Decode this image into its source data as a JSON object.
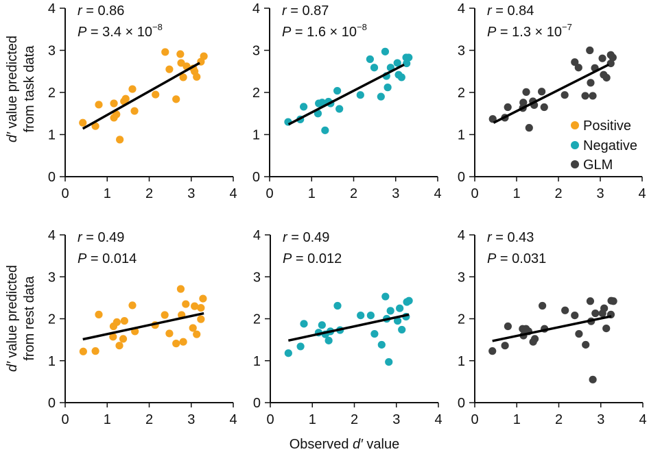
{
  "chart_data": [
    {
      "type": "scatter",
      "row": "task",
      "series_name": "Positive",
      "color": "#F5A31F",
      "stats": {
        "r": "0.86",
        "P_mantissa": "3.4",
        "P_exponent": "−8"
      },
      "xlim": [
        0,
        4
      ],
      "ylim": [
        0,
        4
      ],
      "xticks": [
        "0",
        "1",
        "2",
        "3",
        "4"
      ],
      "yticks": [
        "0",
        "1",
        "2",
        "3",
        "4"
      ],
      "fit_line": {
        "x": [
          0.42,
          3.2
        ],
        "y": [
          1.14,
          2.7
        ]
      },
      "points": [
        [
          0.42,
          1.28
        ],
        [
          0.72,
          1.2
        ],
        [
          0.8,
          1.71
        ],
        [
          1.16,
          1.74
        ],
        [
          1.16,
          1.4
        ],
        [
          1.22,
          1.48
        ],
        [
          1.3,
          0.88
        ],
        [
          1.4,
          1.79
        ],
        [
          1.44,
          1.85
        ],
        [
          1.6,
          2.08
        ],
        [
          1.65,
          1.56
        ],
        [
          2.15,
          1.95
        ],
        [
          2.38,
          2.96
        ],
        [
          2.48,
          2.55
        ],
        [
          2.64,
          1.84
        ],
        [
          2.74,
          2.91
        ],
        [
          2.76,
          2.7
        ],
        [
          2.81,
          2.36
        ],
        [
          2.89,
          2.62
        ],
        [
          3.05,
          2.57
        ],
        [
          3.08,
          2.5
        ],
        [
          3.13,
          2.37
        ],
        [
          3.23,
          2.73
        ],
        [
          3.3,
          2.86
        ]
      ]
    },
    {
      "type": "scatter",
      "row": "task",
      "series_name": "Negative",
      "color": "#1BA9B5",
      "stats": {
        "r": "0.87",
        "P_mantissa": "1.6",
        "P_exponent": "−8"
      },
      "xlim": [
        0,
        4
      ],
      "ylim": [
        0,
        4
      ],
      "xticks": [
        "0",
        "1",
        "2",
        "3",
        "4"
      ],
      "yticks": [
        "0",
        "1",
        "2",
        "3",
        "4"
      ],
      "fit_line": {
        "x": [
          0.45,
          3.2
        ],
        "y": [
          1.24,
          2.66
        ]
      },
      "points": [
        [
          0.44,
          1.3
        ],
        [
          0.73,
          1.36
        ],
        [
          0.81,
          1.66
        ],
        [
          1.15,
          1.5
        ],
        [
          1.17,
          1.74
        ],
        [
          1.25,
          1.76
        ],
        [
          1.32,
          1.1
        ],
        [
          1.4,
          1.78
        ],
        [
          1.45,
          1.74
        ],
        [
          1.61,
          2.04
        ],
        [
          1.66,
          1.61
        ],
        [
          2.16,
          1.94
        ],
        [
          2.39,
          2.79
        ],
        [
          2.49,
          2.59
        ],
        [
          2.65,
          1.9
        ],
        [
          2.75,
          2.97
        ],
        [
          2.78,
          2.39
        ],
        [
          2.81,
          2.12
        ],
        [
          2.88,
          2.59
        ],
        [
          3.04,
          2.7
        ],
        [
          3.07,
          2.42
        ],
        [
          3.14,
          2.36
        ],
        [
          3.25,
          2.83
        ],
        [
          3.31,
          2.83
        ],
        [
          3.26,
          2.69
        ]
      ]
    },
    {
      "type": "scatter",
      "row": "task",
      "series_name": "GLM",
      "color": "#404040",
      "stats": {
        "r": "0.84",
        "P_mantissa": "1.3",
        "P_exponent": "−7"
      },
      "xlim": [
        0,
        4
      ],
      "ylim": [
        0,
        4
      ],
      "xticks": [
        "0",
        "1",
        "2",
        "3",
        "4"
      ],
      "yticks": [
        "0",
        "1",
        "2",
        "3",
        "4"
      ],
      "fit_line": {
        "x": [
          0.45,
          3.2
        ],
        "y": [
          1.28,
          2.66
        ]
      },
      "points": [
        [
          0.43,
          1.37
        ],
        [
          0.72,
          1.4
        ],
        [
          0.79,
          1.65
        ],
        [
          1.15,
          1.63
        ],
        [
          1.16,
          1.76
        ],
        [
          1.23,
          2.01
        ],
        [
          1.3,
          1.16
        ],
        [
          1.39,
          1.79
        ],
        [
          1.42,
          1.7
        ],
        [
          1.6,
          2.02
        ],
        [
          1.66,
          1.65
        ],
        [
          2.15,
          1.94
        ],
        [
          2.39,
          2.72
        ],
        [
          2.48,
          2.59
        ],
        [
          2.64,
          1.92
        ],
        [
          2.75,
          3.0
        ],
        [
          2.77,
          2.23
        ],
        [
          2.82,
          1.92
        ],
        [
          2.87,
          2.58
        ],
        [
          3.05,
          2.81
        ],
        [
          3.08,
          2.42
        ],
        [
          3.15,
          2.35
        ],
        [
          3.25,
          2.89
        ],
        [
          3.3,
          2.83
        ],
        [
          3.25,
          2.69
        ]
      ]
    },
    {
      "type": "scatter",
      "row": "rest",
      "series_name": "Positive",
      "color": "#F5A31F",
      "stats": {
        "r": "0.49",
        "P": "0.014"
      },
      "xlim": [
        0,
        4
      ],
      "ylim": [
        0,
        4
      ],
      "xticks": [
        "0",
        "1",
        "2",
        "3",
        "4"
      ],
      "yticks": [
        "0",
        "1",
        "2",
        "3",
        "4"
      ],
      "fit_line": {
        "x": [
          0.42,
          3.3
        ],
        "y": [
          1.51,
          2.13
        ]
      },
      "points": [
        [
          0.43,
          1.22
        ],
        [
          0.72,
          1.23
        ],
        [
          0.8,
          2.1
        ],
        [
          1.14,
          1.57
        ],
        [
          1.15,
          1.82
        ],
        [
          1.23,
          1.92
        ],
        [
          1.29,
          1.36
        ],
        [
          1.38,
          1.52
        ],
        [
          1.41,
          1.95
        ],
        [
          1.6,
          2.32
        ],
        [
          1.66,
          1.7
        ],
        [
          2.14,
          1.85
        ],
        [
          2.37,
          2.09
        ],
        [
          2.48,
          1.65
        ],
        [
          2.64,
          1.41
        ],
        [
          2.75,
          2.71
        ],
        [
          2.77,
          2.09
        ],
        [
          2.81,
          1.45
        ],
        [
          2.87,
          2.35
        ],
        [
          3.04,
          1.78
        ],
        [
          3.08,
          2.3
        ],
        [
          3.13,
          1.63
        ],
        [
          3.23,
          2.26
        ],
        [
          3.23,
          1.99
        ],
        [
          3.28,
          2.48
        ]
      ]
    },
    {
      "type": "scatter",
      "row": "rest",
      "series_name": "Negative",
      "color": "#1BA9B5",
      "stats": {
        "r": "0.49",
        "P": "0.012"
      },
      "xlim": [
        0,
        4
      ],
      "ylim": [
        0,
        4
      ],
      "xticks": [
        "0",
        "1",
        "2",
        "3",
        "4"
      ],
      "yticks": [
        "0",
        "1",
        "2",
        "3",
        "4"
      ],
      "fit_line": {
        "x": [
          0.43,
          3.3
        ],
        "y": [
          1.48,
          2.1
        ]
      },
      "points": [
        [
          0.43,
          1.18
        ],
        [
          0.72,
          1.34
        ],
        [
          0.8,
          1.88
        ],
        [
          1.15,
          1.67
        ],
        [
          1.23,
          1.85
        ],
        [
          1.31,
          1.63
        ],
        [
          1.39,
          1.48
        ],
        [
          1.43,
          1.7
        ],
        [
          1.6,
          2.31
        ],
        [
          1.66,
          1.73
        ],
        [
          2.15,
          2.08
        ],
        [
          2.39,
          2.08
        ],
        [
          2.48,
          1.64
        ],
        [
          2.65,
          1.38
        ],
        [
          2.74,
          2.53
        ],
        [
          2.77,
          2.0
        ],
        [
          2.82,
          0.97
        ],
        [
          2.86,
          2.19
        ],
        [
          3.03,
          1.95
        ],
        [
          3.08,
          2.25
        ],
        [
          3.13,
          1.74
        ],
        [
          3.23,
          2.05
        ],
        [
          3.25,
          2.4
        ],
        [
          3.3,
          2.43
        ]
      ]
    },
    {
      "type": "scatter",
      "row": "rest",
      "series_name": "GLM",
      "color": "#404040",
      "stats": {
        "r": "0.43",
        "P": "0.031"
      },
      "xlim": [
        0,
        4
      ],
      "ylim": [
        0,
        4
      ],
      "xticks": [
        "0",
        "1",
        "2",
        "3",
        "4"
      ],
      "yticks": [
        "0",
        "1",
        "2",
        "3",
        "4"
      ],
      "fit_line": {
        "x": [
          0.42,
          3.25
        ],
        "y": [
          1.47,
          2.06
        ]
      },
      "points": [
        [
          0.42,
          1.23
        ],
        [
          0.72,
          1.36
        ],
        [
          0.79,
          1.82
        ],
        [
          1.14,
          1.76
        ],
        [
          1.16,
          1.6
        ],
        [
          1.22,
          1.76
        ],
        [
          1.28,
          1.7
        ],
        [
          1.39,
          1.45
        ],
        [
          1.43,
          1.52
        ],
        [
          1.61,
          2.31
        ],
        [
          1.66,
          1.76
        ],
        [
          2.15,
          2.2
        ],
        [
          2.38,
          2.08
        ],
        [
          2.48,
          1.64
        ],
        [
          2.64,
          1.38
        ],
        [
          2.75,
          2.42
        ],
        [
          2.77,
          1.94
        ],
        [
          2.81,
          0.55
        ],
        [
          2.87,
          2.13
        ],
        [
          3.04,
          2.13
        ],
        [
          3.08,
          2.25
        ],
        [
          3.13,
          1.77
        ],
        [
          3.24,
          2.1
        ],
        [
          3.25,
          2.43
        ],
        [
          3.3,
          2.42
        ]
      ]
    }
  ],
  "labels": {
    "y_task_line1_italic": "d′",
    "y_task_line1_rest": " value predicted",
    "y_task_line2": "from task data",
    "y_rest_line1_italic": "d′",
    "y_rest_line1_rest": " value predicted",
    "y_rest_line2": "from rest data",
    "x_prefix": "Observed ",
    "x_italic": "d′",
    "x_suffix": " value",
    "r_symbol": "r",
    "p_symbol": "P",
    "equals": " = ",
    "times_ten": " × 10"
  },
  "legend": [
    {
      "label": "Positive",
      "color": "#F5A31F"
    },
    {
      "label": "Negative",
      "color": "#1BA9B5"
    },
    {
      "label": "GLM",
      "color": "#404040"
    }
  ]
}
